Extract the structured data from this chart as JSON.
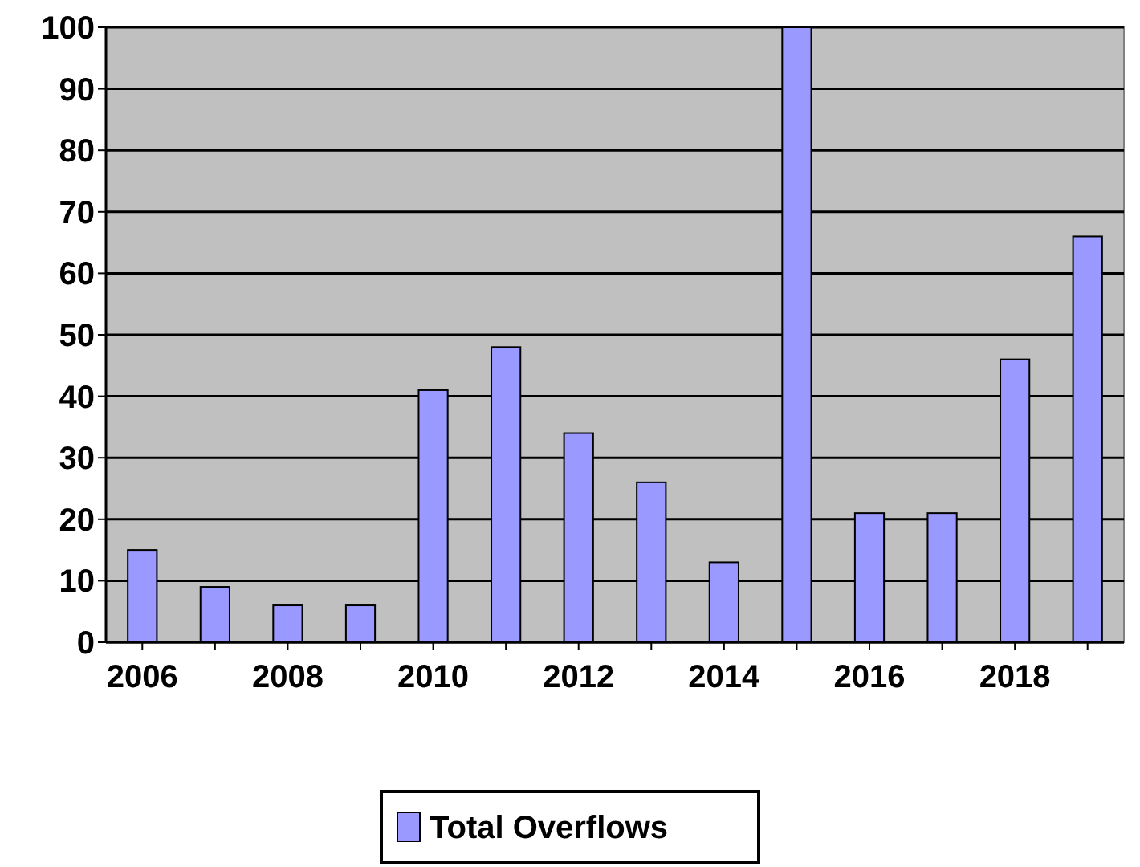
{
  "chart_data": {
    "type": "bar",
    "categories": [
      "2006",
      null,
      "2008",
      null,
      "2010",
      null,
      "2012",
      null,
      "2014",
      null,
      "2016",
      null,
      "2018",
      null
    ],
    "series": [
      {
        "name": "Total Overflows",
        "color": "#9999ff",
        "values": [
          15,
          9,
          6,
          6,
          41,
          48,
          34,
          26,
          13,
          100,
          21,
          21,
          46,
          66
        ]
      }
    ],
    "ylim": [
      0,
      100
    ],
    "yticks": [
      0,
      10,
      20,
      30,
      40,
      50,
      60,
      70,
      80,
      90,
      100
    ],
    "grid": "y",
    "legend": "bottom"
  }
}
